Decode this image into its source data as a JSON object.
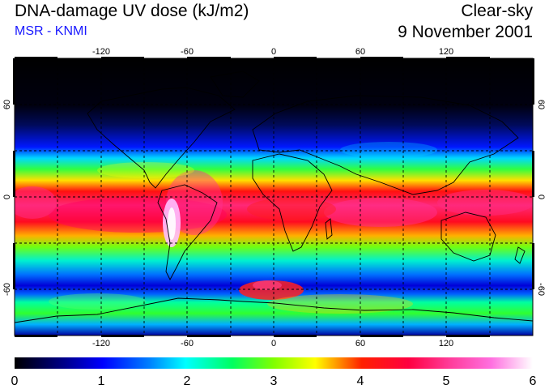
{
  "header": {
    "title": "DNA-damage UV dose (kJ/m2)",
    "subtitle": "MSR - KNMI",
    "sky_condition": "Clear-sky",
    "date": "9 November 2001"
  },
  "map": {
    "projection": "equirectangular",
    "lon_ticks": [
      "-120",
      "-60",
      "0",
      "60",
      "120"
    ],
    "lat_ticks": [
      "60",
      "0",
      "-60"
    ],
    "lat_ticks_right": [
      "60",
      "0",
      "-60"
    ],
    "gridlines": "dashed",
    "coastlines": true
  },
  "colorbar": {
    "labels": [
      "0",
      "1",
      "2",
      "3",
      "4",
      "5",
      "6"
    ],
    "min": 0,
    "max": 6,
    "colors": [
      "#000000",
      "#0000c8",
      "#0050ff",
      "#00e6ff",
      "#00ff5a",
      "#7fff00",
      "#ffff00",
      "#ffa000",
      "#ff0000",
      "#ff2a80",
      "#ff5ad2",
      "#ffffff"
    ]
  }
}
